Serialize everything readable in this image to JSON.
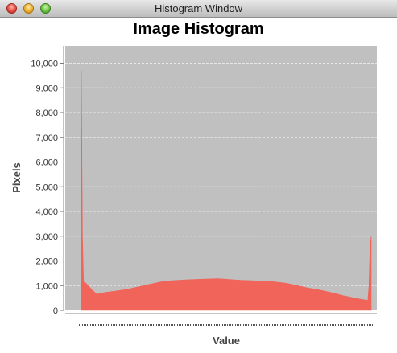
{
  "window": {
    "title": "Histogram Window"
  },
  "chart_data": {
    "type": "area",
    "title": "Image Histogram",
    "xlabel": "Value",
    "ylabel": "Pixels",
    "ylim": [
      0,
      10700
    ],
    "yticks": [
      0,
      1000,
      2000,
      3000,
      4000,
      5000,
      6000,
      7000,
      8000,
      9000,
      10000
    ],
    "ytick_labels": [
      "0",
      "1,000",
      "2,000",
      "3,000",
      "4,000",
      "5,000",
      "6,000",
      "7,000",
      "8,000",
      "9,000",
      "10,000"
    ],
    "xlim": [
      0,
      255
    ],
    "grid": true,
    "colors": {
      "fill": "#f0645a",
      "plot_background": "#c0c0c0",
      "grid": "#e8e8e8"
    },
    "series": [
      {
        "x": [
          0,
          1,
          2,
          3,
          4,
          6,
          8,
          10,
          12,
          14,
          16,
          18,
          20,
          25,
          30,
          40,
          50,
          60,
          70,
          80,
          90,
          100,
          110,
          120,
          130,
          140,
          150,
          160,
          170,
          180,
          190,
          200,
          210,
          220,
          230,
          240,
          245,
          248,
          250,
          252,
          253,
          254,
          255
        ],
        "y": [
          9700,
          3000,
          1100,
          1150,
          1100,
          1000,
          900,
          800,
          720,
          650,
          680,
          700,
          720,
          750,
          780,
          850,
          950,
          1050,
          1150,
          1200,
          1230,
          1250,
          1270,
          1280,
          1250,
          1220,
          1200,
          1180,
          1150,
          1100,
          1000,
          900,
          820,
          720,
          600,
          500,
          460,
          440,
          420,
          400,
          1000,
          2600,
          3000
        ]
      }
    ]
  }
}
